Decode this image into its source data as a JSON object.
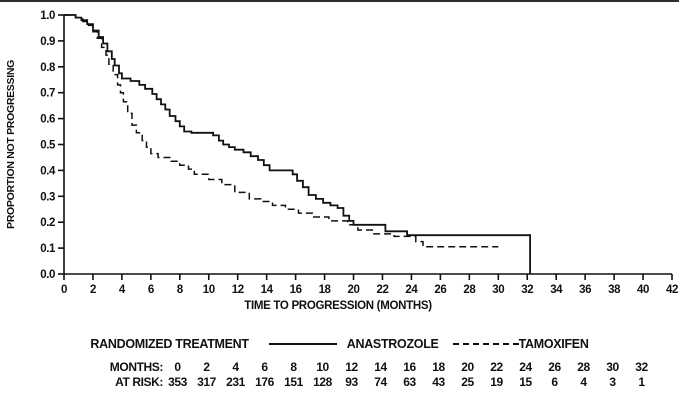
{
  "chart_data": {
    "type": "line",
    "subtype": "kaplan-meier-step",
    "title": "",
    "xlabel": "TIME TO PROGRESSION (MONTHS)",
    "ylabel": "PROPORTION NOT PROGRESSING",
    "xlim": [
      0,
      42
    ],
    "ylim": [
      0.0,
      1.0
    ],
    "xticks": [
      0,
      2,
      4,
      6,
      8,
      10,
      12,
      14,
      16,
      18,
      20,
      22,
      24,
      26,
      28,
      30,
      32,
      34,
      36,
      38,
      40,
      42
    ],
    "yticks": [
      0.0,
      0.1,
      0.2,
      0.3,
      0.4,
      0.5,
      0.6,
      0.7,
      0.8,
      0.9,
      1.0
    ],
    "grid": false,
    "legend_position": "below",
    "line_color": "#111111",
    "series": [
      {
        "name": "ANASTROZOLE",
        "style": "solid",
        "points": [
          [
            0,
            1.0
          ],
          [
            0.8,
            0.99
          ],
          [
            1.2,
            0.98
          ],
          [
            1.6,
            0.965
          ],
          [
            2.0,
            0.94
          ],
          [
            2.4,
            0.915
          ],
          [
            2.7,
            0.89
          ],
          [
            3.0,
            0.86
          ],
          [
            3.3,
            0.83
          ],
          [
            3.5,
            0.805
          ],
          [
            3.8,
            0.775
          ],
          [
            4.0,
            0.755
          ],
          [
            4.6,
            0.745
          ],
          [
            5.2,
            0.73
          ],
          [
            5.6,
            0.715
          ],
          [
            6.1,
            0.695
          ],
          [
            6.4,
            0.675
          ],
          [
            6.7,
            0.655
          ],
          [
            7.0,
            0.635
          ],
          [
            7.3,
            0.61
          ],
          [
            7.7,
            0.59
          ],
          [
            8.0,
            0.57
          ],
          [
            8.3,
            0.55
          ],
          [
            8.8,
            0.545
          ],
          [
            10.3,
            0.535
          ],
          [
            10.7,
            0.515
          ],
          [
            11.0,
            0.5
          ],
          [
            11.4,
            0.49
          ],
          [
            11.8,
            0.48
          ],
          [
            12.4,
            0.47
          ],
          [
            12.9,
            0.455
          ],
          [
            13.4,
            0.44
          ],
          [
            13.8,
            0.42
          ],
          [
            14.2,
            0.4
          ],
          [
            15.8,
            0.385
          ],
          [
            16.1,
            0.36
          ],
          [
            16.5,
            0.335
          ],
          [
            16.9,
            0.305
          ],
          [
            17.4,
            0.29
          ],
          [
            17.9,
            0.275
          ],
          [
            18.4,
            0.265
          ],
          [
            18.9,
            0.255
          ],
          [
            19.3,
            0.225
          ],
          [
            19.7,
            0.205
          ],
          [
            20.0,
            0.19
          ],
          [
            22.2,
            0.165
          ],
          [
            23.7,
            0.15
          ],
          [
            32.2,
            0.15
          ],
          [
            32.2,
            0.0
          ]
        ]
      },
      {
        "name": "TAMOXIFEN",
        "style": "dashed",
        "points": [
          [
            0,
            1.0
          ],
          [
            0.8,
            0.99
          ],
          [
            1.3,
            0.975
          ],
          [
            1.7,
            0.96
          ],
          [
            2.0,
            0.935
          ],
          [
            2.3,
            0.91
          ],
          [
            2.6,
            0.875
          ],
          [
            2.9,
            0.845
          ],
          [
            3.1,
            0.81
          ],
          [
            3.4,
            0.77
          ],
          [
            3.7,
            0.73
          ],
          [
            3.9,
            0.7
          ],
          [
            4.1,
            0.665
          ],
          [
            4.4,
            0.62
          ],
          [
            4.7,
            0.575
          ],
          [
            5.0,
            0.545
          ],
          [
            5.4,
            0.515
          ],
          [
            5.7,
            0.49
          ],
          [
            6.0,
            0.465
          ],
          [
            6.5,
            0.45
          ],
          [
            7.4,
            0.435
          ],
          [
            8.0,
            0.42
          ],
          [
            8.6,
            0.405
          ],
          [
            9.0,
            0.385
          ],
          [
            10.0,
            0.365
          ],
          [
            10.9,
            0.345
          ],
          [
            11.8,
            0.315
          ],
          [
            12.8,
            0.29
          ],
          [
            13.6,
            0.28
          ],
          [
            14.4,
            0.265
          ],
          [
            15.3,
            0.25
          ],
          [
            16.2,
            0.235
          ],
          [
            17.2,
            0.22
          ],
          [
            18.3,
            0.205
          ],
          [
            19.6,
            0.19
          ],
          [
            20.3,
            0.17
          ],
          [
            21.4,
            0.155
          ],
          [
            22.8,
            0.145
          ],
          [
            24.3,
            0.125
          ],
          [
            24.8,
            0.105
          ],
          [
            30.0,
            0.105
          ]
        ]
      }
    ]
  },
  "legend": {
    "title": "RANDOMIZED TREATMENT",
    "series": [
      {
        "label": "ANASTROZOLE",
        "style": "solid"
      },
      {
        "label": "TAMOXIFEN",
        "style": "dashed"
      }
    ]
  },
  "risk_table": {
    "rows": [
      {
        "label": "MONTHS:",
        "values": [
          "0",
          "2",
          "4",
          "6",
          "8",
          "10",
          "12",
          "14",
          "16",
          "18",
          "20",
          "22",
          "24",
          "26",
          "28",
          "30",
          "32"
        ]
      },
      {
        "label": "AT RISK:",
        "values": [
          "353",
          "317",
          "231",
          "176",
          "151",
          "128",
          "93",
          "74",
          "63",
          "43",
          "25",
          "19",
          "15",
          "6",
          "4",
          "3",
          "1"
        ]
      }
    ]
  }
}
